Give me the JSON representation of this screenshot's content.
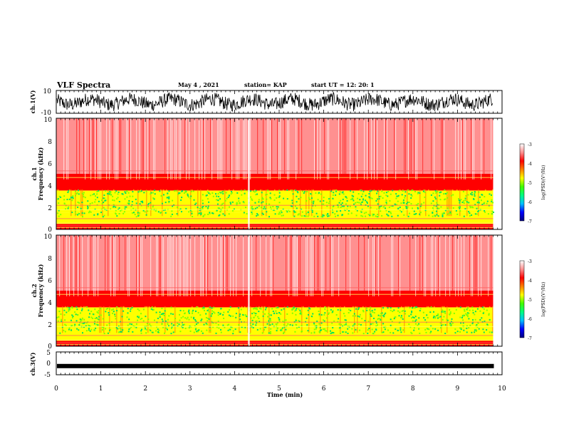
{
  "header": {
    "title": "VLF Spectra",
    "date": "May 4 , 2021",
    "station": "station= KAP",
    "start": "start UT = 12: 20: 1"
  },
  "panels": {
    "ch1_wave": {
      "ylabel": "ch.1(V)",
      "ticks": [
        "10",
        "-10"
      ]
    },
    "ch1_spec": {
      "ylabel_1": "ch.1",
      "ylabel_2": "Frequency (kHz)",
      "ticks": [
        "10",
        "8",
        "6",
        "4",
        "2",
        "0"
      ]
    },
    "ch2_spec": {
      "ylabel_1": "ch.2",
      "ylabel_2": "Frequency (kHz)",
      "ticks": [
        "10",
        "8",
        "6",
        "4",
        "2",
        "0"
      ]
    },
    "ch3_wave": {
      "ylabel": "ch.3(V)",
      "ticks": [
        "5",
        "0",
        "-5"
      ]
    }
  },
  "colorbar": {
    "label": "log(PSD)(V²/Hz)",
    "ticks": [
      "-3",
      "-4",
      "-5",
      "-6",
      "-7"
    ],
    "colors": [
      "#000080",
      "#0000ff",
      "#00c0ff",
      "#00ff80",
      "#40ff00",
      "#ffff00",
      "#ff8000",
      "#ff0000",
      "#ff9090",
      "#ffffff"
    ]
  },
  "x_axis": {
    "label": "Time (min)",
    "ticks": [
      "0",
      "1",
      "2",
      "3",
      "4",
      "5",
      "6",
      "7",
      "8",
      "9",
      "10"
    ]
  },
  "chart_data": {
    "type": "heatmap",
    "xlabel": "Time (min)",
    "xlim": [
      0,
      9.8
    ],
    "axis_max": 10,
    "ylim_frequency_khz": [
      0,
      10
    ],
    "ylim_ch1_v": [
      -10,
      10
    ],
    "ylim_ch3_v": [
      -5,
      5
    ],
    "ch3_level_v": -1.2,
    "color_range": [
      -7,
      -3
    ],
    "spectral_bands_khz": [
      {
        "from": 0,
        "to": 0.5,
        "log_psd": -4.1
      },
      {
        "from": 0.5,
        "to": 1.5,
        "log_psd": -4.8
      },
      {
        "from": 1.5,
        "to": 3.5,
        "log_psd": -5.0
      },
      {
        "from": 3.5,
        "to": 5,
        "log_psd": -4.0
      },
      {
        "from": 5,
        "to": 10,
        "log_psd": -3.4
      }
    ]
  }
}
